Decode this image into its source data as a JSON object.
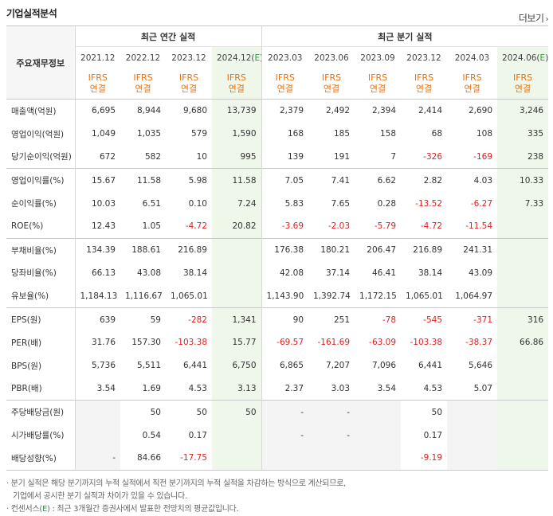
{
  "title": "기업실적분석",
  "more_label": "더보기",
  "corner_label": "주요재무정보",
  "groups": {
    "annual": "최근 연간 실적",
    "quarter": "최근 분기 실적"
  },
  "annual_periods": [
    "2021.12",
    "2022.12",
    "2023.12",
    "2024.12(E)"
  ],
  "quarter_periods": [
    "2023.03",
    "2023.06",
    "2023.09",
    "2023.12",
    "2024.03",
    "2024.06(E)"
  ],
  "basis_top": "IFRS",
  "basis_bottom": "연결",
  "rows": [
    {
      "label": "매출액(억원)",
      "values": [
        "6,695",
        "8,944",
        "9,680",
        "13,739",
        "2,379",
        "2,492",
        "2,394",
        "2,414",
        "2,690",
        "3,246"
      ]
    },
    {
      "label": "영업이익(억원)",
      "values": [
        "1,049",
        "1,035",
        "579",
        "1,590",
        "168",
        "185",
        "158",
        "68",
        "108",
        "335"
      ]
    },
    {
      "label": "당기순이익(억원)",
      "values": [
        "672",
        "582",
        "10",
        "995",
        "139",
        "191",
        "7",
        "-326",
        "-169",
        "238"
      ]
    },
    {
      "label": "영업이익률(%)",
      "values": [
        "15.67",
        "11.58",
        "5.98",
        "11.58",
        "7.05",
        "7.41",
        "6.62",
        "2.82",
        "4.03",
        "10.33"
      ]
    },
    {
      "label": "순이익률(%)",
      "values": [
        "10.03",
        "6.51",
        "0.10",
        "7.24",
        "5.83",
        "7.65",
        "0.28",
        "-13.52",
        "-6.27",
        "7.33"
      ]
    },
    {
      "label": "ROE(%)",
      "values": [
        "12.43",
        "1.05",
        "-4.72",
        "20.82",
        "-3.69",
        "-2.03",
        "-5.79",
        "-4.72",
        "-11.54",
        ""
      ]
    },
    {
      "label": "부채비율(%)",
      "values": [
        "134.39",
        "188.61",
        "216.89",
        "",
        "176.38",
        "180.21",
        "206.47",
        "216.89",
        "241.31",
        ""
      ]
    },
    {
      "label": "당좌비율(%)",
      "values": [
        "66.13",
        "43.08",
        "38.14",
        "",
        "42.08",
        "37.14",
        "46.41",
        "38.14",
        "43.09",
        ""
      ]
    },
    {
      "label": "유보율(%)",
      "values": [
        "1,184.13",
        "1,116.67",
        "1,065.01",
        "",
        "1,143.90",
        "1,392.74",
        "1,172.15",
        "1,065.01",
        "1,064.97",
        ""
      ]
    },
    {
      "label": "EPS(원)",
      "values": [
        "639",
        "59",
        "-282",
        "1,341",
        "90",
        "251",
        "-78",
        "-545",
        "-371",
        "316"
      ]
    },
    {
      "label": "PER(배)",
      "values": [
        "31.76",
        "157.30",
        "-103.38",
        "15.77",
        "-69.57",
        "-161.69",
        "-63.09",
        "-103.38",
        "-38.37",
        "66.86"
      ]
    },
    {
      "label": "BPS(원)",
      "values": [
        "5,736",
        "5,511",
        "6,441",
        "6,750",
        "6,865",
        "7,207",
        "7,096",
        "6,441",
        "5,646",
        ""
      ]
    },
    {
      "label": "PBR(배)",
      "values": [
        "3.54",
        "1.69",
        "4.53",
        "3.13",
        "2.37",
        "3.03",
        "3.54",
        "4.53",
        "5.07",
        ""
      ]
    },
    {
      "label": "주당배당금(원)",
      "values": [
        "",
        "50",
        "50",
        "50",
        "-",
        "-",
        "",
        "50",
        "",
        ""
      ]
    },
    {
      "label": "시가배당률(%)",
      "values": [
        "",
        "0.54",
        "0.17",
        "",
        "-",
        "-",
        "",
        "0.17",
        "",
        ""
      ]
    },
    {
      "label": "배당성향(%)",
      "values": [
        "-",
        "84.66",
        "-17.75",
        "",
        "",
        "",
        "",
        "-9.19",
        "",
        ""
      ]
    }
  ],
  "notes": {
    "line1": "· 분기 실적은 해당 분기까지의 누적 실적에서 직전 분기까지의 누적 실적을 차감하는 방식으로 계산되므로,",
    "line2": "기업에서 공시한 분기 실적과 차이가 있을 수 있습니다.",
    "line3_prefix": "· 컨센서스(",
    "line3_mark": "E",
    "line3_suffix": ") : 최근 3개월간 증권사에서 발표한 전망치의 평균값입니다."
  },
  "colors": {
    "negative": "#e02020",
    "basis": "#e8730c",
    "estimate_bg": "#eef7ea",
    "empty_bg": "#f4f4f4"
  }
}
